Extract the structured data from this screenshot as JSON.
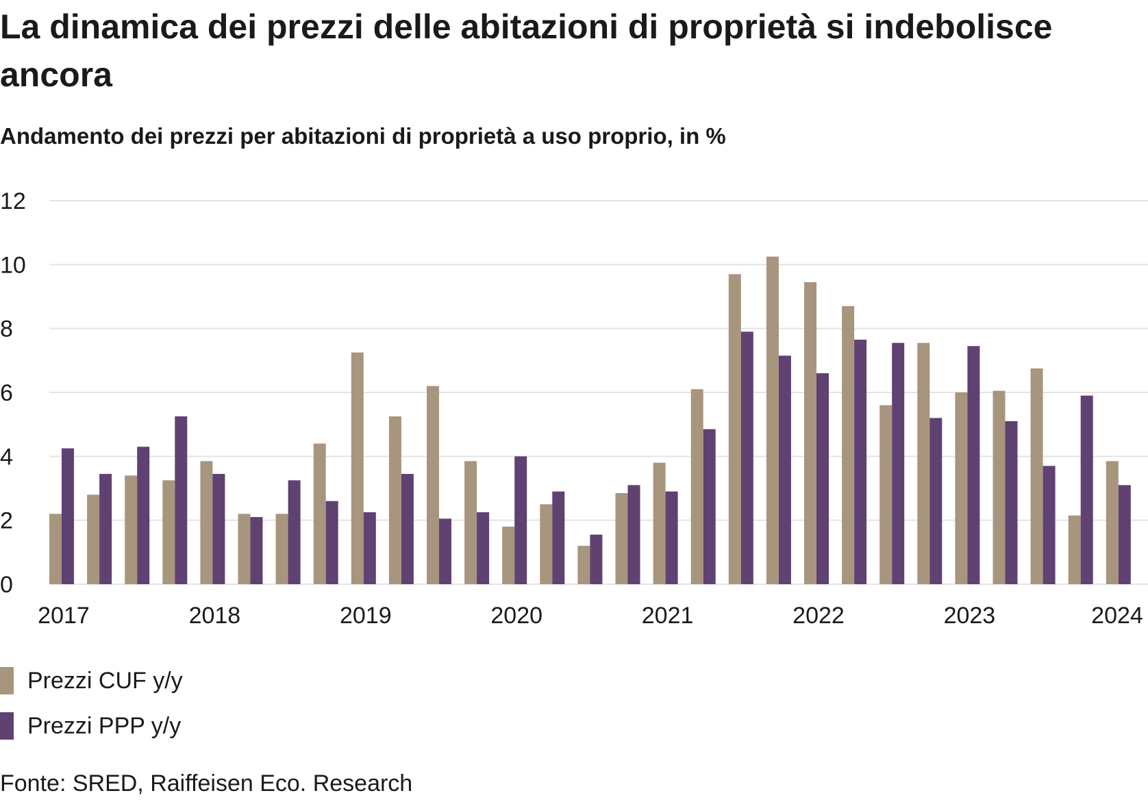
{
  "title": "La dinamica dei prezzi delle abitazioni di proprietà si indebolisce ancora",
  "subtitle": "Andamento dei prezzi per abitazioni di proprietà a uso proprio, in %",
  "source": "Fonte: SRED, Raiffeisen Eco. Research",
  "chart_data": {
    "type": "bar",
    "title": "La dinamica dei prezzi delle abitazioni di proprietà si indebolisce ancora",
    "subtitle": "Andamento dei prezzi per abitazioni di proprietà a uso proprio, in %",
    "xlabel": "",
    "ylabel": "",
    "ylim": [
      0,
      12
    ],
    "yticks": [
      "0",
      "2",
      "4",
      "6",
      "8",
      "10",
      "12"
    ],
    "grid": true,
    "legend_position": "bottom-left",
    "categories": [
      "2017 Q1",
      "2017 Q2",
      "2017 Q3",
      "2017 Q4",
      "2018 Q1",
      "2018 Q2",
      "2018 Q3",
      "2018 Q4",
      "2019 Q1",
      "2019 Q2",
      "2019 Q3",
      "2019 Q4",
      "2020 Q1",
      "2020 Q2",
      "2020 Q3",
      "2020 Q4",
      "2021 Q1",
      "2021 Q2",
      "2021 Q3",
      "2021 Q4",
      "2022 Q1",
      "2022 Q2",
      "2022 Q3",
      "2022 Q4",
      "2023 Q1",
      "2023 Q2",
      "2023 Q3",
      "2023 Q4",
      "2024 Q1"
    ],
    "xtick_labels": [
      "2017",
      "2018",
      "2019",
      "2020",
      "2021",
      "2022",
      "2023",
      "2024"
    ],
    "series": [
      {
        "name": "Prezzi CUF y/y",
        "color": "#a8957e",
        "values": [
          2.2,
          2.8,
          3.4,
          3.25,
          3.85,
          2.2,
          2.2,
          4.4,
          7.25,
          5.25,
          6.2,
          3.85,
          1.8,
          2.5,
          1.2,
          2.85,
          3.8,
          6.1,
          9.7,
          10.25,
          9.45,
          8.7,
          5.6,
          7.55,
          6.0,
          6.05,
          6.75,
          2.15,
          3.85
        ]
      },
      {
        "name": "Prezzi PPP y/y",
        "color": "#5f4172",
        "values": [
          4.25,
          3.45,
          4.3,
          5.25,
          3.45,
          2.1,
          3.25,
          2.6,
          2.25,
          3.45,
          2.05,
          2.25,
          4.0,
          2.9,
          1.55,
          3.1,
          2.9,
          4.85,
          7.9,
          7.15,
          6.6,
          7.65,
          7.55,
          5.2,
          7.45,
          5.1,
          3.7,
          5.9,
          3.1
        ]
      }
    ]
  }
}
